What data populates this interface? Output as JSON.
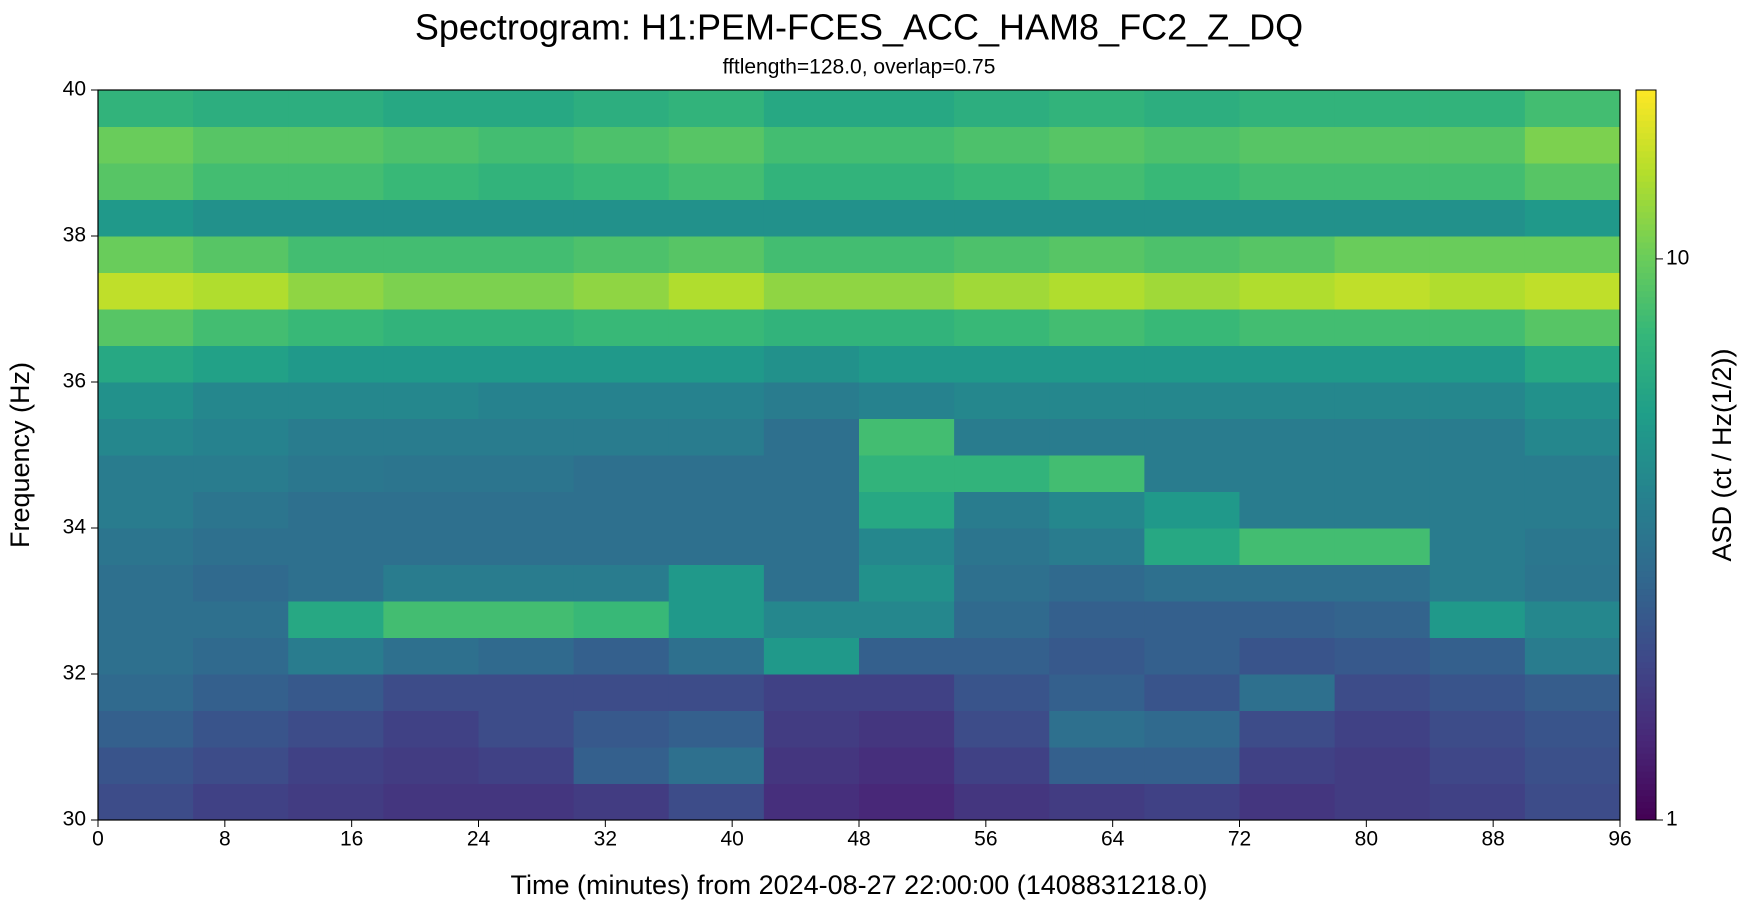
{
  "chart_data": {
    "type": "heatmap",
    "title": "Spectrogram: H1:PEM-FCES_ACC_HAM8_FC2_Z_DQ",
    "subtitle": "fftlength=128.0, overlap=0.75",
    "xlabel": "Time (minutes) from 2024-08-27 22:00:00 (1408831218.0)",
    "ylabel": "Frequency (Hz)",
    "colorbar_label": "ASD (ct / Hz(1/2))",
    "x_edges": [
      0,
      6,
      12,
      18,
      24,
      30,
      36,
      42,
      48,
      54,
      60,
      66,
      72,
      78,
      84,
      90,
      96
    ],
    "y_edges": [
      30,
      30.5,
      31,
      31.5,
      32,
      32.5,
      33,
      33.5,
      34,
      34.5,
      35,
      35.5,
      36,
      36.5,
      37,
      37.5,
      38,
      38.5,
      39,
      39.5,
      40
    ],
    "z": [
      [
        2,
        1.8,
        1.7,
        1.6,
        1.6,
        1.7,
        2,
        1.5,
        1.4,
        1.6,
        1.7,
        1.8,
        1.6,
        1.7,
        1.8,
        2
      ],
      [
        2.2,
        2,
        1.8,
        1.7,
        1.8,
        2.5,
        3,
        1.6,
        1.5,
        1.8,
        2.5,
        2.5,
        1.8,
        1.7,
        1.9,
        2.1
      ],
      [
        2.5,
        2.2,
        2,
        1.8,
        2,
        2.3,
        2.5,
        1.7,
        1.6,
        2,
        3,
        2.8,
        2,
        1.8,
        2,
        2.2
      ],
      [
        2.8,
        2.5,
        2.3,
        2,
        2,
        2,
        2,
        1.8,
        1.8,
        2.2,
        2.5,
        2.2,
        3,
        2,
        2.2,
        2.4
      ],
      [
        3,
        2.8,
        3.5,
        3,
        2.8,
        2.5,
        3,
        5,
        2.5,
        2.5,
        2.3,
        2.5,
        2.2,
        2.3,
        2.5,
        3.5
      ],
      [
        3,
        3,
        6,
        8,
        8,
        7.5,
        5,
        4,
        4,
        2.8,
        2.5,
        2.5,
        2.5,
        2.6,
        5,
        4
      ],
      [
        3,
        2.8,
        3,
        3.5,
        3.5,
        3.5,
        5,
        3,
        4.5,
        3,
        2.8,
        3,
        3,
        3,
        3.5,
        3.2
      ],
      [
        3.2,
        3,
        3,
        3,
        3,
        3,
        3,
        3,
        4,
        3.2,
        3.5,
        6,
        8,
        8,
        3.5,
        3.3
      ],
      [
        3.5,
        3.2,
        3,
        3,
        3,
        3,
        3,
        3,
        6,
        3.5,
        4,
        5,
        3.5,
        3.5,
        3.5,
        3.5
      ],
      [
        3.5,
        3.5,
        3.3,
        3.2,
        3.2,
        3,
        3,
        3,
        7,
        7,
        8,
        3.5,
        3.5,
        3.5,
        3.5,
        3.5
      ],
      [
        4,
        3.8,
        3.5,
        3.5,
        3.5,
        3.5,
        3.5,
        3,
        8,
        3.5,
        3.5,
        3.5,
        3.5,
        3.5,
        3.5,
        4
      ],
      [
        4.5,
        4,
        4,
        4,
        3.8,
        3.8,
        3.8,
        3.5,
        3.8,
        4,
        4,
        4,
        4,
        4,
        4,
        4.5
      ],
      [
        6,
        5.5,
        5,
        5,
        5,
        5,
        5,
        4.5,
        5,
        5,
        5,
        5,
        5,
        5,
        5,
        6
      ],
      [
        9,
        8,
        7.5,
        7,
        7,
        7.5,
        7.5,
        7,
        7,
        7.5,
        8,
        7.5,
        8,
        8,
        8,
        9
      ],
      [
        15,
        14,
        12,
        11,
        11,
        12,
        14,
        12,
        12,
        13,
        14,
        13,
        14,
        15,
        14,
        15
      ],
      [
        10,
        9,
        8,
        8,
        8,
        8.5,
        9,
        8,
        8,
        8.5,
        9,
        8.5,
        9,
        10,
        10,
        10
      ],
      [
        5,
        4.5,
        4.5,
        4.5,
        4.5,
        4.5,
        4.5,
        4.5,
        4.5,
        4.5,
        4.5,
        4.5,
        4.5,
        4.5,
        4.5,
        5
      ],
      [
        9,
        8,
        8,
        7.5,
        7,
        7.5,
        8,
        7,
        7,
        7.5,
        8,
        7.5,
        8,
        8,
        8,
        9
      ],
      [
        10,
        9,
        9,
        8.5,
        8,
        8.5,
        9,
        8,
        8,
        8.5,
        9,
        8.5,
        9,
        9,
        9,
        11
      ],
      [
        7,
        6.5,
        6.5,
        6,
        6,
        6.5,
        7,
        6,
        6,
        6.5,
        7,
        6.5,
        7,
        7,
        7,
        8
      ]
    ],
    "xlim": [
      0,
      96
    ],
    "xticks": [
      0,
      8,
      16,
      24,
      32,
      40,
      48,
      56,
      64,
      72,
      80,
      88,
      96
    ],
    "ylim": [
      30,
      40
    ],
    "yticks": [
      30,
      32,
      34,
      36,
      38,
      40
    ],
    "clim": [
      1,
      20
    ],
    "cticks": [
      1,
      10
    ],
    "clog": true,
    "colormap": "viridis"
  }
}
